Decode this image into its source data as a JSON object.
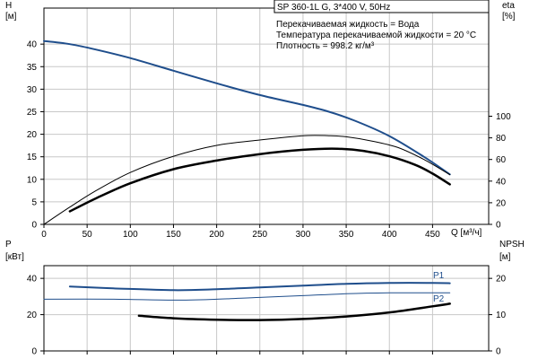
{
  "chart_data": [
    {
      "type": "line",
      "title": "SP 360-1L G, 3*400 V, 50Hz",
      "annotations": [
        "Перекачиваемая жидкость = Вода",
        "Температура перекачиваемой жидкости = 20 °C",
        "Плотность = 998.2 кг/м³"
      ],
      "xlabel": "Q [м³/ч]",
      "x_ticks": [
        0,
        50,
        100,
        150,
        200,
        250,
        300,
        350,
        400,
        450
      ],
      "xlim": [
        0,
        515
      ],
      "ylabel_left": [
        "H",
        "[м]"
      ],
      "y_left_ticks": [
        0,
        5,
        10,
        15,
        20,
        25,
        30,
        35,
        40
      ],
      "ylim_left": [
        0,
        48
      ],
      "ylabel_right": [
        "eta",
        "[%]"
      ],
      "y_right_ticks": [
        0,
        20,
        40,
        60,
        80,
        100
      ],
      "ylim_right": [
        0,
        200
      ],
      "grid": true,
      "series": [
        {
          "axis": "left",
          "color": "#1f4e8c",
          "width": 2,
          "x": [
            0,
            30,
            60,
            100,
            150,
            200,
            250,
            300,
            330,
            360,
            400,
            440,
            470
          ],
          "y": [
            40.7,
            40.0,
            38.8,
            36.9,
            34.1,
            31.3,
            28.7,
            26.5,
            25.0,
            23.0,
            19.6,
            15.0,
            11.1
          ]
        },
        {
          "axis": "right",
          "color": "#000000",
          "width": 1,
          "x": [
            0,
            30,
            60,
            100,
            150,
            200,
            250,
            300,
            330,
            350,
            380,
            410,
            440,
            470
          ],
          "y": [
            0,
            16,
            31,
            48,
            63,
            73,
            78,
            82,
            82,
            81,
            77,
            71,
            60,
            46
          ]
        },
        {
          "axis": "right",
          "color": "#000000",
          "width": 2.5,
          "x": [
            30,
            60,
            100,
            150,
            200,
            250,
            300,
            340,
            370,
            400,
            430,
            450,
            470
          ],
          "y": [
            12,
            24,
            38,
            51,
            59,
            65,
            69,
            70,
            68,
            63,
            55,
            47,
            37
          ]
        }
      ]
    },
    {
      "type": "line",
      "xlim": [
        0,
        515
      ],
      "ylabel_left": [
        "P",
        "[кВт]"
      ],
      "y_left_ticks": [
        0,
        20,
        40
      ],
      "ylim_left": [
        0,
        47
      ],
      "ylabel_right": [
        "NPSH",
        "[м]"
      ],
      "y_right_ticks": [
        0,
        10,
        20
      ],
      "ylim_right": [
        0,
        23.5
      ],
      "grid": true,
      "series": [
        {
          "name": "P1",
          "axis": "left",
          "color": "#1f4e8c",
          "width": 2,
          "x": [
            30,
            80,
            150,
            200,
            250,
            300,
            350,
            400,
            450,
            470
          ],
          "y": [
            35.5,
            34.5,
            33.5,
            34.0,
            35.0,
            36.0,
            37.0,
            37.5,
            37.5,
            37.3
          ]
        },
        {
          "name": "P2",
          "axis": "left",
          "color": "#1f4e8c",
          "width": 1,
          "x": [
            0,
            80,
            150,
            200,
            250,
            300,
            350,
            400,
            450,
            470
          ],
          "y": [
            28.5,
            28.5,
            28.0,
            28.5,
            29.5,
            30.5,
            31.5,
            32.0,
            32.0,
            32.0
          ]
        },
        {
          "axis": "right",
          "color": "#000000",
          "width": 2.5,
          "x": [
            110,
            150,
            200,
            250,
            300,
            350,
            400,
            450,
            470
          ],
          "y": [
            9.7,
            9.0,
            8.6,
            8.5,
            8.8,
            9.5,
            10.6,
            12.3,
            13.0
          ]
        }
      ]
    }
  ]
}
